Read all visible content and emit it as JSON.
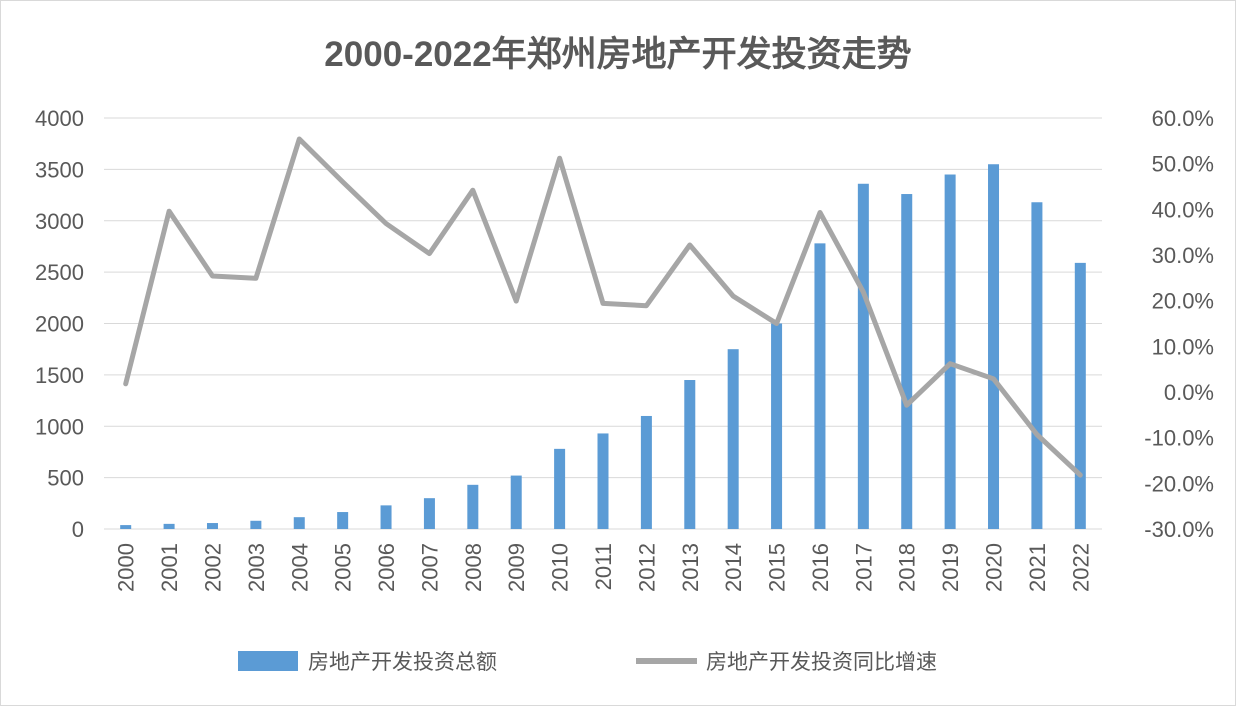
{
  "chart_data": {
    "type": "bar+line",
    "title": "2000-2022年郑州房地产开发投资走势",
    "categories": [
      "2000",
      "2001",
      "2002",
      "2003",
      "2004",
      "2005",
      "2006",
      "2007",
      "2008",
      "2009",
      "2010",
      "2011",
      "2012",
      "2013",
      "2014",
      "2015",
      "2016",
      "2017",
      "2018",
      "2019",
      "2020",
      "2021",
      "2022"
    ],
    "series": [
      {
        "name": "房地产开发投资总额",
        "type": "bar",
        "axis": "left",
        "color": "#5b9bd5",
        "values": [
          38,
          50,
          58,
          80,
          115,
          165,
          230,
          300,
          430,
          520,
          780,
          930,
          1100,
          1450,
          1750,
          2000,
          2780,
          3360,
          3260,
          3450,
          3550,
          3180,
          2590
        ]
      },
      {
        "name": "房地产开发投资同比增速",
        "type": "line",
        "axis": "right",
        "color": "#a6a6a6",
        "values": [
          1.8,
          39.6,
          25.4,
          24.9,
          55.4,
          46.0,
          36.9,
          30.3,
          44.2,
          19.9,
          51.2,
          19.4,
          18.9,
          32.2,
          21.0,
          15.0,
          39.3,
          21.9,
          -2.9,
          6.2,
          2.9,
          -9.3,
          -18.2
        ]
      }
    ],
    "y_left": {
      "min": 0,
      "max": 4000,
      "ticks": [
        0,
        500,
        1000,
        1500,
        2000,
        2500,
        3000,
        3500,
        4000
      ]
    },
    "y_right": {
      "min": -30,
      "max": 60,
      "ticks": [
        "-30.0%",
        "-20.0%",
        "-10.0%",
        "0.0%",
        "10.0%",
        "20.0%",
        "30.0%",
        "40.0%",
        "50.0%",
        "60.0%"
      ]
    },
    "grid": true,
    "legend": {
      "position": "bottom",
      "entries": [
        "房地产开发投资总额",
        "房地产开发投资同比增速"
      ]
    }
  }
}
